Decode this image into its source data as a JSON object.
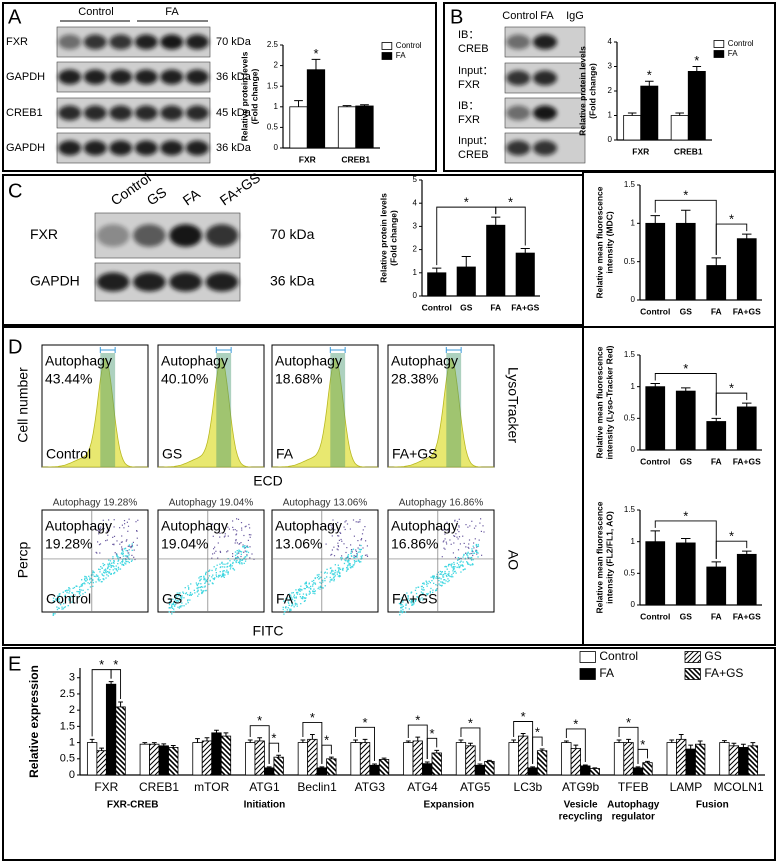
{
  "panel_labels": [
    "A",
    "B",
    "C",
    "D",
    "E"
  ],
  "blots": {
    "A": {
      "groups": [
        "Control",
        "FA"
      ],
      "rows": [
        {
          "label": "FXR",
          "size": "70 kDa"
        },
        {
          "label": "GAPDH",
          "size": "36 kDa"
        },
        {
          "label": "CREB1",
          "size": "45 kDa"
        },
        {
          "label": "GAPDH",
          "size": "36 kDa"
        }
      ]
    },
    "B": {
      "lanes": [
        "Control",
        "FA",
        "IgG"
      ],
      "rows": [
        {
          "label": [
            "IB：",
            "CREB"
          ]
        },
        {
          "label": [
            "Input：",
            "FXR"
          ]
        },
        {
          "label": [
            "IB：",
            "FXR"
          ]
        },
        {
          "label": [
            "Input：",
            "CREB"
          ]
        }
      ]
    },
    "C": {
      "lanes": [
        "Control",
        "GS",
        "FA",
        "FA+GS"
      ],
      "rows": [
        {
          "label": "FXR",
          "size": "70 kDa"
        },
        {
          "label": "GAPDH",
          "size": "36 kDa"
        }
      ]
    }
  },
  "flow": {
    "histograms": [
      {
        "text": [
          "Autophagy",
          "43.44%"
        ],
        "label": "Control"
      },
      {
        "text": [
          "Autophagy",
          "40.10%"
        ],
        "label": "GS"
      },
      {
        "text": [
          "Autophagy",
          "18.68%"
        ],
        "label": "FA"
      },
      {
        "text": [
          "Autophagy",
          "28.38%"
        ],
        "label": "FA+GS"
      }
    ],
    "hist_ylabel": "Cell number",
    "hist_xlabel": "ECD",
    "hist_side": "LysoTracker",
    "scatters": [
      {
        "header": "Autophagy 19.28%",
        "text": [
          "Autophagy",
          "19.28%"
        ],
        "label": "Control"
      },
      {
        "header": "Autophagy 19.04%",
        "text": [
          "Autophagy",
          "19.04%"
        ],
        "label": "GS"
      },
      {
        "header": "Autophagy 13.06%",
        "text": [
          "Autophagy",
          "13.06%"
        ],
        "label": "FA"
      },
      {
        "header": "Autophagy 16.86%",
        "text": [
          "Autophagy",
          "16.86%"
        ],
        "label": "FA+GS"
      }
    ],
    "scatter_ylabel": "Percp",
    "scatter_xlabel": "FITC",
    "scatter_side": "AO"
  },
  "chart_data": [
    {
      "type": "bar",
      "ylabel": [
        "Relative protein levels",
        "(Fold change)"
      ],
      "categories": [
        "FXR",
        "CREB1"
      ],
      "series": [
        {
          "name": "Control",
          "color": "#ffffff",
          "values": [
            1,
            1
          ],
          "errors": [
            0.15,
            0.03
          ]
        },
        {
          "name": "FA",
          "color": "#000000",
          "values": [
            1.9,
            1.02
          ],
          "errors": [
            0.25,
            0.03
          ]
        }
      ],
      "ylim": [
        0,
        2.5
      ],
      "yticks": [
        0,
        0.5,
        1.0,
        1.5,
        2.0,
        2.5
      ],
      "legend": "top-right",
      "markers": [
        {
          "series": 1,
          "category": 0,
          "label": "*"
        }
      ]
    },
    {
      "type": "bar",
      "ylabel": [
        "Relative protein levels",
        "(Fold change)"
      ],
      "categories": [
        "FXR",
        "CREB1"
      ],
      "series": [
        {
          "name": "Control",
          "color": "#ffffff",
          "values": [
            1,
            1
          ],
          "errors": [
            0.1,
            0.1
          ]
        },
        {
          "name": "FA",
          "color": "#000000",
          "values": [
            2.2,
            2.8
          ],
          "errors": [
            0.2,
            0.2
          ]
        }
      ],
      "ylim": [
        0,
        4
      ],
      "yticks": [
        0,
        1,
        2,
        3,
        4
      ],
      "legend": "top-right",
      "markers": [
        {
          "series": 1,
          "category": 0,
          "label": "*"
        },
        {
          "series": 1,
          "category": 1,
          "label": "*"
        }
      ]
    },
    {
      "type": "bar",
      "ylabel": [
        "Relative protein levels",
        "(Fold change)"
      ],
      "categories": [
        "Control",
        "GS",
        "FA",
        "FA+GS"
      ],
      "values": [
        1,
        1.25,
        3.05,
        1.85
      ],
      "errors": [
        0.2,
        0.45,
        0.35,
        0.2
      ],
      "color": "#000000",
      "ylim": [
        0,
        5
      ],
      "yticks": [
        0,
        1,
        2,
        3,
        4,
        5
      ],
      "brackets": [
        {
          "from": 0,
          "to": 2,
          "label": "*"
        },
        {
          "from": 2,
          "to": 3,
          "label": "*"
        }
      ]
    },
    {
      "type": "bar",
      "ylabel": [
        "Relative mean fluorescence",
        "intensity (MDC)"
      ],
      "categories": [
        "Control",
        "GS",
        "FA",
        "FA+GS"
      ],
      "values": [
        1,
        1,
        0.45,
        0.8
      ],
      "errors": [
        0.1,
        0.17,
        0.1,
        0.06
      ],
      "color": "#000000",
      "ylim": [
        0,
        1.5
      ],
      "yticks": [
        0.0,
        0.5,
        1.0,
        1.5
      ],
      "brackets": [
        {
          "from": 0,
          "to": 2,
          "label": "*"
        },
        {
          "from": 2,
          "to": 3,
          "label": "*"
        }
      ]
    },
    {
      "type": "bar",
      "ylabel": [
        "Relative mean fluorescence",
        "intensity (Lyso-Tracker Red)"
      ],
      "categories": [
        "Control",
        "GS",
        "FA",
        "FA+GS"
      ],
      "values": [
        1,
        0.93,
        0.45,
        0.68
      ],
      "errors": [
        0.05,
        0.05,
        0.05,
        0.06
      ],
      "color": "#000000",
      "ylim": [
        0,
        1.5
      ],
      "yticks": [
        0.0,
        0.5,
        1.0,
        1.5
      ],
      "brackets": [
        {
          "from": 0,
          "to": 2,
          "label": "*"
        },
        {
          "from": 2,
          "to": 3,
          "label": "*"
        }
      ]
    },
    {
      "type": "bar",
      "ylabel": [
        "Relative mean fluorescence",
        "intensity (FL2/FL1, AO)"
      ],
      "categories": [
        "Control",
        "GS",
        "FA",
        "FA+GS"
      ],
      "values": [
        1,
        0.98,
        0.6,
        0.8
      ],
      "errors": [
        0.17,
        0.07,
        0.08,
        0.05
      ],
      "color": "#000000",
      "ylim": [
        0,
        1.5
      ],
      "yticks": [
        0.0,
        0.5,
        1.0,
        1.5
      ],
      "brackets": [
        {
          "from": 0,
          "to": 2,
          "label": "*"
        },
        {
          "from": 2,
          "to": 3,
          "label": "*"
        }
      ]
    },
    {
      "type": "bar",
      "ylabel": [
        "Relative expression"
      ],
      "categories": [
        "FXR",
        "CREB1",
        "mTOR",
        "ATG1",
        "Beclin1",
        "ATG3",
        "ATG4",
        "ATG5",
        "LC3b",
        "ATG9b",
        "TFEB",
        "LAMP",
        "MCOLN1"
      ],
      "series": [
        {
          "name": "Control",
          "color": "#ffffff",
          "values": [
            1,
            0.95,
            1,
            1,
            1,
            1,
            1,
            1,
            1,
            1,
            1,
            1,
            1
          ],
          "errors": [
            0.1,
            0.05,
            0.12,
            0.08,
            0.08,
            0.08,
            0.05,
            0.08,
            0.08,
            0.05,
            0.08,
            0.08,
            0.06
          ]
        },
        {
          "name": "GS",
          "color": "#ffffff",
          "hatch": "right",
          "values": [
            0.75,
            0.95,
            1.05,
            1.05,
            1.1,
            1,
            1.05,
            0.9,
            1.2,
            0.82,
            1,
            1.1,
            0.9
          ],
          "errors": [
            0.08,
            0.05,
            0.1,
            0.1,
            0.15,
            0.1,
            0.12,
            0.08,
            0.08,
            0.1,
            0.1,
            0.15,
            0.08
          ]
        },
        {
          "name": "FA",
          "color": "#000000",
          "values": [
            2.8,
            0.9,
            1.3,
            0.22,
            0.22,
            0.3,
            0.35,
            0.3,
            0.22,
            0.28,
            0.22,
            0.8,
            0.85
          ],
          "errors": [
            0.08,
            0.06,
            0.08,
            0.03,
            0.03,
            0.04,
            0.05,
            0.04,
            0.03,
            0.03,
            0.03,
            0.12,
            0.1
          ]
        },
        {
          "name": "FA+GS",
          "color": "#ffffff",
          "hatch": "left",
          "values": [
            2.1,
            0.85,
            1.2,
            0.55,
            0.5,
            0.48,
            0.68,
            0.42,
            0.75,
            0.2,
            0.38,
            0.95,
            0.9
          ],
          "errors": [
            0.15,
            0.06,
            0.1,
            0.06,
            0.05,
            0.04,
            0.08,
            0.03,
            0.05,
            0.02,
            0.04,
            0.1,
            0.1
          ]
        }
      ],
      "ylim": [
        0,
        3.3
      ],
      "yticks": [
        0,
        0.5,
        1,
        1.5,
        2,
        2.5,
        3
      ],
      "legend": "top-right",
      "groups": [
        {
          "label": [
            "FXR-CREB"
          ],
          "start": 0,
          "end": 1
        },
        {
          "label": [
            "Initiation"
          ],
          "start": 2,
          "end": 4
        },
        {
          "label": [
            "Expansion"
          ],
          "start": 5,
          "end": 8
        },
        {
          "label": [
            "Vesicle",
            "recycling"
          ],
          "start": 9,
          "end": 9
        },
        {
          "label": [
            "Autophagy",
            "regulator"
          ],
          "start": 10,
          "end": 10
        },
        {
          "label": [
            "Fusion"
          ],
          "start": 11,
          "end": 12
        }
      ],
      "brackets": [
        {
          "category": 0,
          "from": 0,
          "to": 2,
          "label": "*"
        },
        {
          "category": 0,
          "from": 2,
          "to": 3,
          "label": "*"
        },
        {
          "category": 3,
          "from": 0,
          "to": 2,
          "label": "*"
        },
        {
          "category": 3,
          "from": 2,
          "to": 3,
          "label": "*"
        },
        {
          "category": 4,
          "from": 0,
          "to": 2,
          "label": "*"
        },
        {
          "category": 4,
          "from": 2,
          "to": 3,
          "label": "*"
        },
        {
          "category": 5,
          "from": 0,
          "to": 2,
          "label": "*"
        },
        {
          "category": 6,
          "from": 0,
          "to": 2,
          "label": "*"
        },
        {
          "category": 6,
          "from": 2,
          "to": 3,
          "label": "*"
        },
        {
          "category": 7,
          "from": 0,
          "to": 2,
          "label": "*"
        },
        {
          "category": 8,
          "from": 0,
          "to": 2,
          "label": "*"
        },
        {
          "category": 8,
          "from": 2,
          "to": 3,
          "label": "*"
        },
        {
          "category": 9,
          "from": 0,
          "to": 2,
          "label": "*"
        },
        {
          "category": 10,
          "from": 0,
          "to": 2,
          "label": "*"
        },
        {
          "category": 10,
          "from": 2,
          "to": 3,
          "label": "*"
        }
      ]
    }
  ]
}
